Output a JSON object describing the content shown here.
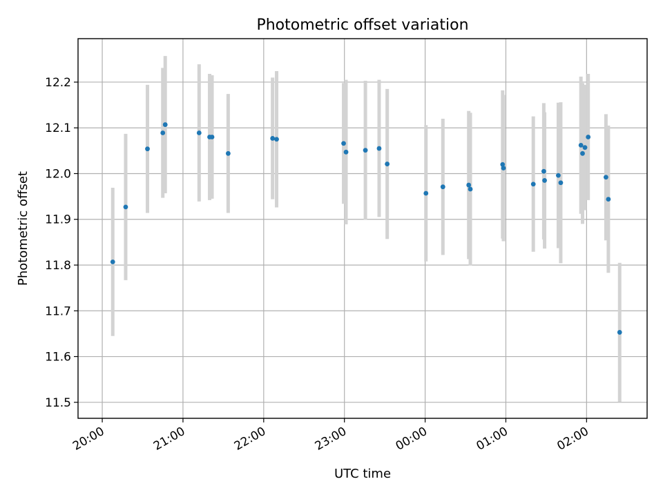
{
  "chart_data": {
    "type": "scatter",
    "title": "Photometric offset variation",
    "xlabel": "UTC time",
    "ylabel": "Photometric offset",
    "x_unit": "hours",
    "xlim": [
      19.7,
      26.75
    ],
    "ylim": [
      11.465,
      12.295
    ],
    "x_ticks": [
      {
        "value": 20,
        "label": "20:00"
      },
      {
        "value": 21,
        "label": "21:00"
      },
      {
        "value": 22,
        "label": "22:00"
      },
      {
        "value": 23,
        "label": "23:00"
      },
      {
        "value": 24,
        "label": "00:00"
      },
      {
        "value": 25,
        "label": "01:00"
      },
      {
        "value": 26,
        "label": "02:00"
      }
    ],
    "y_ticks": [
      {
        "value": 11.5,
        "label": "11.5"
      },
      {
        "value": 11.6,
        "label": "11.6"
      },
      {
        "value": 11.7,
        "label": "11.7"
      },
      {
        "value": 11.8,
        "label": "11.8"
      },
      {
        "value": 11.9,
        "label": "11.9"
      },
      {
        "value": 12.0,
        "label": "12.0"
      },
      {
        "value": 12.1,
        "label": "12.1"
      },
      {
        "value": 12.2,
        "label": "12.2"
      }
    ],
    "grid": true,
    "marker_color": "#1f77b4",
    "errorbar_color": "#d3d3d3",
    "points": [
      {
        "x": 20.13,
        "y": 11.807,
        "err": 0.162
      },
      {
        "x": 20.29,
        "y": 11.927,
        "err": 0.16
      },
      {
        "x": 20.56,
        "y": 12.054,
        "err": 0.14
      },
      {
        "x": 20.75,
        "y": 12.089,
        "err": 0.142
      },
      {
        "x": 20.78,
        "y": 12.107,
        "err": 0.15
      },
      {
        "x": 21.2,
        "y": 12.089,
        "err": 0.15
      },
      {
        "x": 21.33,
        "y": 12.08,
        "err": 0.138
      },
      {
        "x": 21.36,
        "y": 12.08,
        "err": 0.135
      },
      {
        "x": 21.56,
        "y": 12.044,
        "err": 0.13
      },
      {
        "x": 22.11,
        "y": 12.077,
        "err": 0.133
      },
      {
        "x": 22.16,
        "y": 12.075,
        "err": 0.149
      },
      {
        "x": 22.99,
        "y": 12.066,
        "err": 0.132
      },
      {
        "x": 23.02,
        "y": 12.047,
        "err": 0.158
      },
      {
        "x": 23.26,
        "y": 12.051,
        "err": 0.152
      },
      {
        "x": 23.43,
        "y": 12.055,
        "err": 0.15
      },
      {
        "x": 23.53,
        "y": 12.021,
        "err": 0.164
      },
      {
        "x": 24.01,
        "y": 11.957,
        "err": 0.149
      },
      {
        "x": 24.22,
        "y": 11.971,
        "err": 0.149
      },
      {
        "x": 24.54,
        "y": 11.975,
        "err": 0.162
      },
      {
        "x": 24.56,
        "y": 11.966,
        "err": 0.167
      },
      {
        "x": 24.96,
        "y": 12.02,
        "err": 0.162
      },
      {
        "x": 24.97,
        "y": 12.012,
        "err": 0.16
      },
      {
        "x": 25.34,
        "y": 11.977,
        "err": 0.148
      },
      {
        "x": 25.47,
        "y": 12.005,
        "err": 0.149
      },
      {
        "x": 25.48,
        "y": 11.985,
        "err": 0.149
      },
      {
        "x": 25.65,
        "y": 11.996,
        "err": 0.159
      },
      {
        "x": 25.68,
        "y": 11.98,
        "err": 0.176
      },
      {
        "x": 25.93,
        "y": 12.062,
        "err": 0.15
      },
      {
        "x": 25.95,
        "y": 12.044,
        "err": 0.154
      },
      {
        "x": 25.98,
        "y": 12.057,
        "err": 0.137
      },
      {
        "x": 26.02,
        "y": 12.08,
        "err": 0.138
      },
      {
        "x": 26.24,
        "y": 11.992,
        "err": 0.138
      },
      {
        "x": 26.27,
        "y": 11.944,
        "err": 0.161
      },
      {
        "x": 26.41,
        "y": 11.653,
        "err": 0.152
      }
    ]
  }
}
